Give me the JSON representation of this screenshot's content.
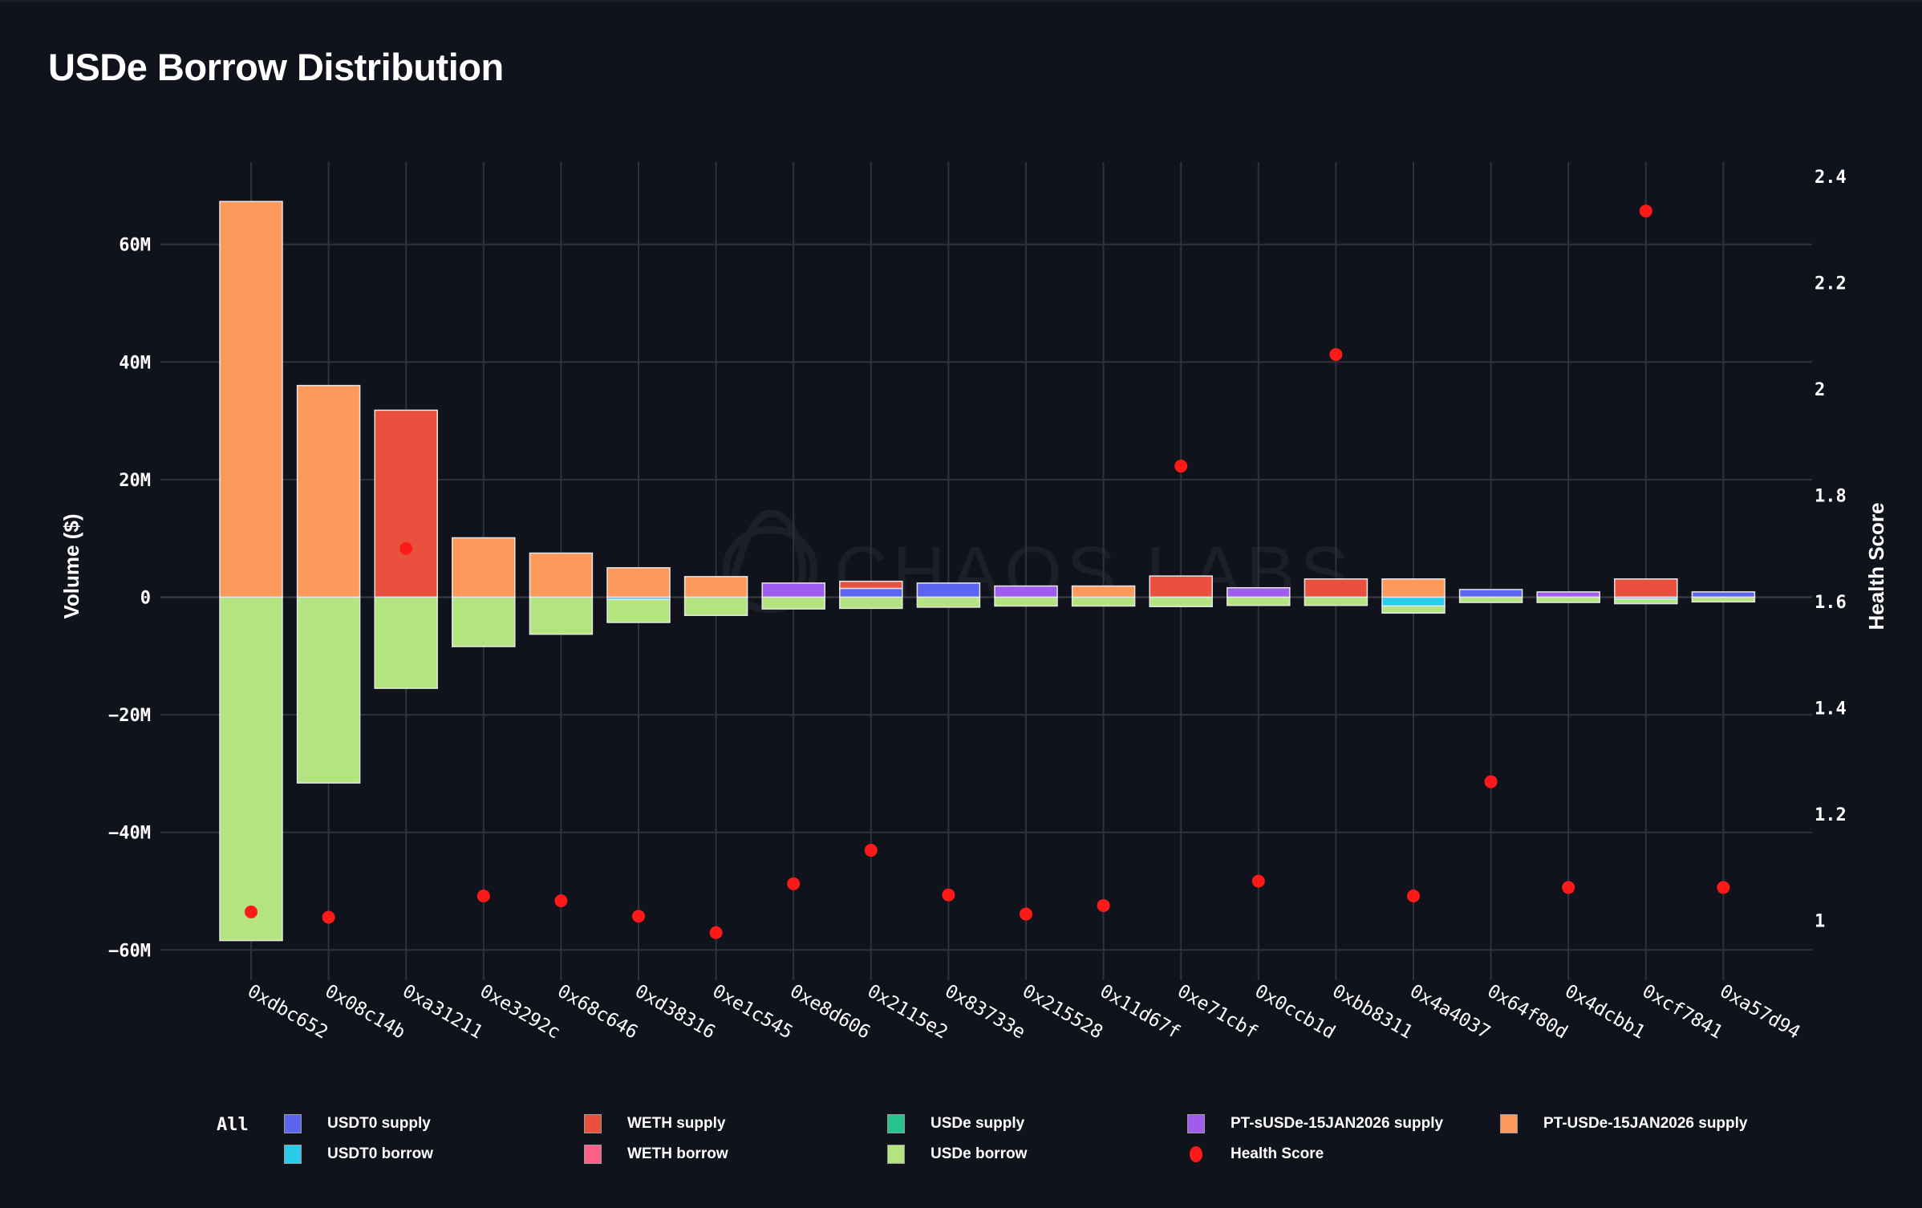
{
  "page": {
    "title": "USDe Borrow Distribution",
    "watermark": "CHAOS LABS"
  },
  "legend": {
    "all_label": "All",
    "items": [
      {
        "key": "usdt0_supply",
        "label": "USDT0 supply",
        "color": "#5b66f0",
        "marker": "square"
      },
      {
        "key": "usdt0_borrow",
        "label": "USDT0 borrow",
        "color": "#2bcbea",
        "marker": "square"
      },
      {
        "key": "weth_supply",
        "label": "WETH supply",
        "color": "#e9503e",
        "marker": "square"
      },
      {
        "key": "weth_borrow",
        "label": "WETH borrow",
        "color": "#fa6088",
        "marker": "square"
      },
      {
        "key": "usde_supply",
        "label": "USDe supply",
        "color": "#26c38f",
        "marker": "square"
      },
      {
        "key": "usde_borrow",
        "label": "USDe borrow",
        "color": "#b3e480",
        "marker": "square"
      },
      {
        "key": "pt_susde_supply",
        "label": "PT-sUSDe-15JAN2026 supply",
        "color": "#a05bef",
        "marker": "square"
      },
      {
        "key": "health",
        "label": "Health Score",
        "color": "#ff1a1a",
        "marker": "dot"
      },
      {
        "key": "pt_usde_supply",
        "label": "PT-USDe-15JAN2026 supply",
        "color": "#fc995b",
        "marker": "square"
      }
    ]
  },
  "chart_data": {
    "type": "bar",
    "stacked": true,
    "title": "USDe Borrow Distribution",
    "xlabel": "",
    "ylabel": "Volume ($)",
    "y2label": "Health Score",
    "ylim": [
      -64000000,
      72000000
    ],
    "y2lim": [
      0.94,
      2.455
    ],
    "yticks": [
      {
        "value": 60000000,
        "label": "60M"
      },
      {
        "value": 40000000,
        "label": "40M"
      },
      {
        "value": 20000000,
        "label": "20M"
      },
      {
        "value": 0,
        "label": "0"
      },
      {
        "value": -20000000,
        "label": "−20M"
      },
      {
        "value": -40000000,
        "label": "−40M"
      },
      {
        "value": -60000000,
        "label": "−60M"
      }
    ],
    "y2ticks": [
      {
        "value": 2.4,
        "label": "2.4"
      },
      {
        "value": 2.2,
        "label": "2.2"
      },
      {
        "value": 2.0,
        "label": "2"
      },
      {
        "value": 1.8,
        "label": "1.8"
      },
      {
        "value": 1.6,
        "label": "1.6"
      },
      {
        "value": 1.4,
        "label": "1.4"
      },
      {
        "value": 1.2,
        "label": "1.2"
      },
      {
        "value": 1.0,
        "label": "1"
      }
    ],
    "grid": true,
    "legend_position": "bottom",
    "categories": [
      "0xdbc652",
      "0x08c14b",
      "0xa31211",
      "0xe3292c",
      "0x68c646",
      "0xd38316",
      "0xe1c545",
      "0xe8d606",
      "0x2115e2",
      "0x83733e",
      "0x215528",
      "0x11d67f",
      "0xe71cbf",
      "0x0ccb1d",
      "0xbb8311",
      "0x4a4037",
      "0x64f80d",
      "0x4dcbb1",
      "0xcf7841",
      "0xa57d94"
    ],
    "series": [
      {
        "name": "USDT0 supply",
        "key": "usdt0_supply",
        "color": "#5b66f0",
        "values": [
          0,
          0,
          0,
          0,
          0,
          0,
          0,
          0,
          1500000,
          2400000,
          0,
          0,
          0,
          0,
          0,
          0,
          1300000,
          0,
          0,
          900000
        ]
      },
      {
        "name": "WETH supply",
        "key": "weth_supply",
        "color": "#e9503e",
        "values": [
          0,
          0,
          31800000,
          0,
          0,
          0,
          0,
          0,
          1200000,
          0,
          0,
          0,
          3600000,
          0,
          3100000,
          0,
          0,
          0,
          3100000,
          0
        ]
      },
      {
        "name": "USDe supply",
        "key": "usde_supply",
        "color": "#26c38f",
        "values": [
          0,
          0,
          0,
          0,
          0,
          0,
          0,
          0,
          0,
          0,
          0,
          0,
          0,
          0,
          0,
          0,
          0,
          0,
          0,
          0
        ]
      },
      {
        "name": "PT-sUSDe-15JAN2026 supply",
        "key": "pt_susde_supply",
        "color": "#a05bef",
        "values": [
          0,
          0,
          0,
          0,
          0,
          0,
          0,
          2400000,
          0,
          0,
          1900000,
          0,
          0,
          1600000,
          0,
          0,
          0,
          900000,
          0,
          0
        ]
      },
      {
        "name": "PT-USDe-15JAN2026 supply",
        "key": "pt_usde_supply",
        "color": "#fc995b",
        "values": [
          67300000,
          36000000,
          0,
          10100000,
          7500000,
          5000000,
          3500000,
          0,
          0,
          0,
          0,
          1900000,
          0,
          0,
          0,
          3100000,
          0,
          0,
          0,
          0
        ]
      },
      {
        "name": "USDT0 borrow",
        "key": "usdt0_borrow",
        "color": "#2bcbea",
        "values": [
          0,
          0,
          0,
          0,
          0,
          -400000,
          0,
          0,
          0,
          0,
          0,
          0,
          0,
          0,
          0,
          -1500000,
          0,
          0,
          -300000,
          0
        ]
      },
      {
        "name": "WETH borrow",
        "key": "weth_borrow",
        "color": "#fa6088",
        "values": [
          0,
          0,
          0,
          0,
          0,
          0,
          0,
          0,
          0,
          0,
          0,
          0,
          0,
          0,
          0,
          0,
          0,
          0,
          0,
          0
        ]
      },
      {
        "name": "USDe borrow",
        "key": "usde_borrow",
        "color": "#b3e480",
        "values": [
          -58400000,
          -31600000,
          -15500000,
          -8400000,
          -6300000,
          -3900000,
          -3100000,
          -2000000,
          -1900000,
          -1700000,
          -1500000,
          -1500000,
          -1600000,
          -1400000,
          -1400000,
          -1200000,
          -900000,
          -900000,
          -800000,
          -800000
        ]
      }
    ],
    "health_score": {
      "name": "Health Score",
      "color": "#ff1a1a",
      "axis": "right",
      "values": [
        1.016,
        1.006,
        1.7,
        1.046,
        1.037,
        1.008,
        0.977,
        1.069,
        1.132,
        1.048,
        1.012,
        1.028,
        1.855,
        1.074,
        2.065,
        1.046,
        1.261,
        1.062,
        2.335,
        1.062
      ]
    }
  }
}
